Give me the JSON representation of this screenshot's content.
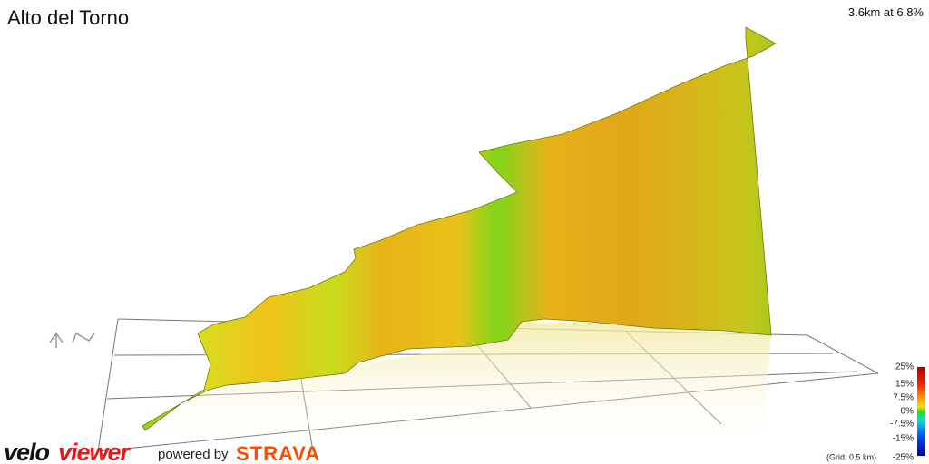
{
  "header": {
    "title": "Alto del Torno",
    "summary": "3.6km at 6.8%"
  },
  "legend": {
    "labels": [
      "25%",
      "15%",
      "7.5%",
      "0%",
      "-7.5%",
      "-15%",
      "-25%"
    ],
    "grid_note": "(Grid: 0.5 km)"
  },
  "footer": {
    "brand_velo": "velo",
    "brand_viewer": "viewer",
    "powered_by": "powered by",
    "strava": "STRAVA"
  }
}
